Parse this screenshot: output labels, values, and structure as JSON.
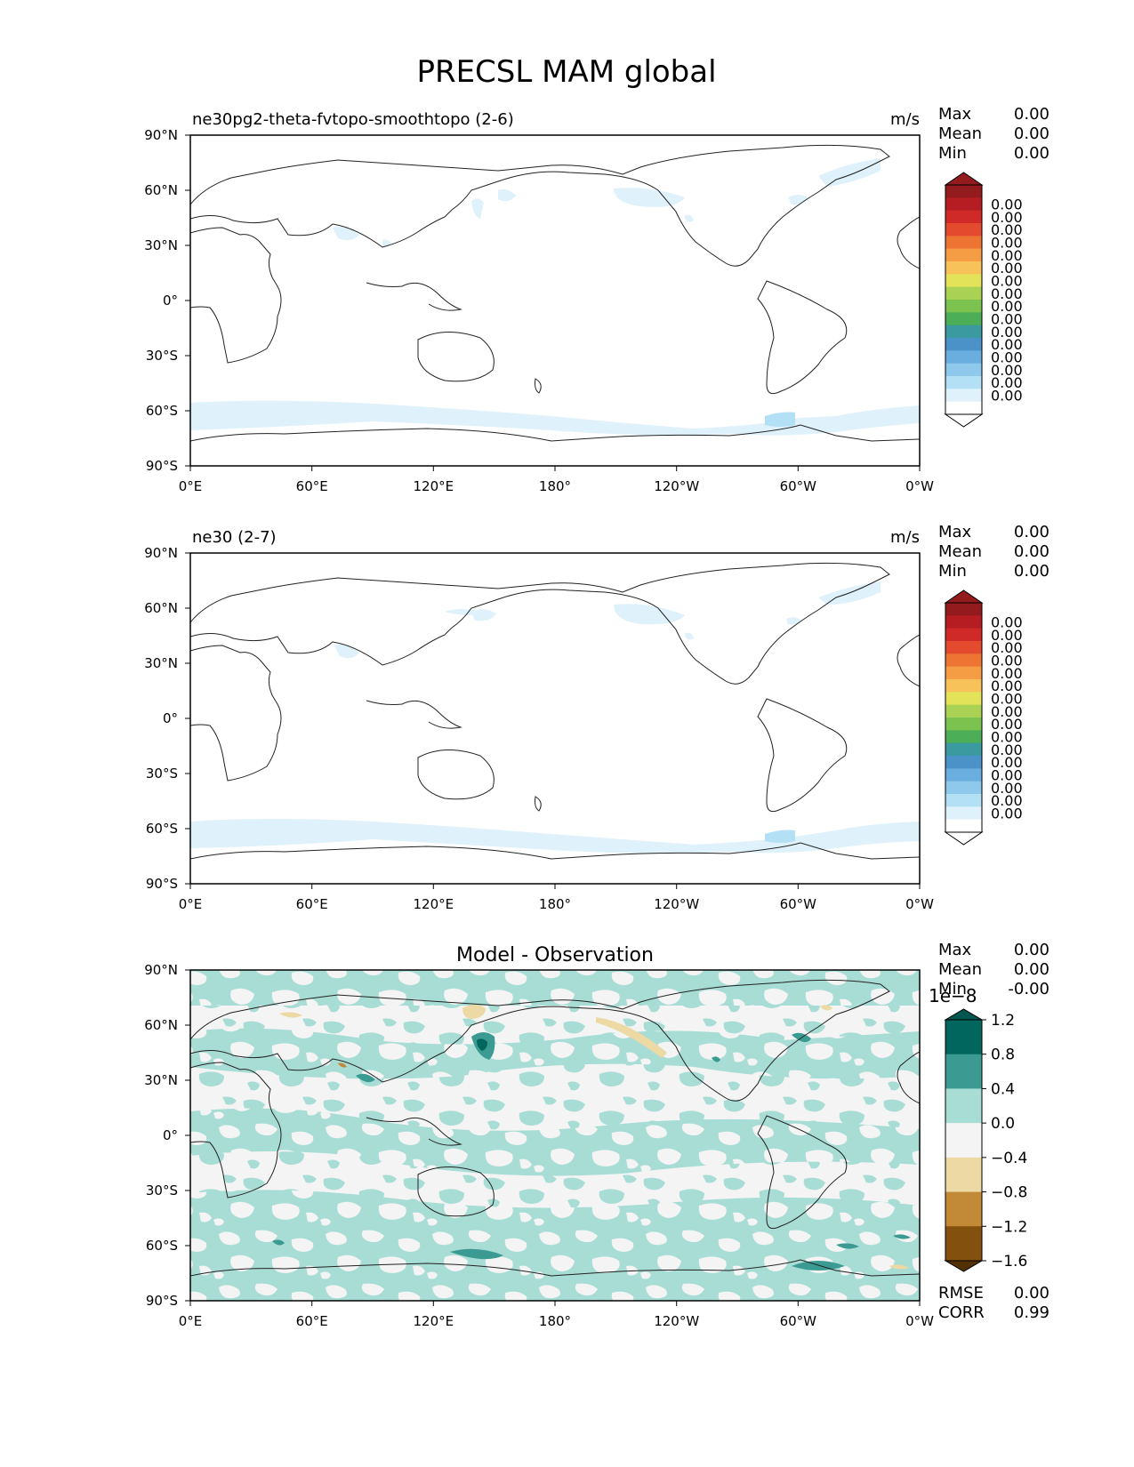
{
  "figure_title": "PRECSL MAM global",
  "chart_data": [
    {
      "type": "heatmap",
      "title": "ne30pg2-theta-fvtopo-smoothtopo (2-6)",
      "units": "m/s",
      "projection": "plate-carree",
      "central_longitude": 180,
      "x_ticks": [
        "0°E",
        "60°E",
        "120°E",
        "180°",
        "120°W",
        "60°W",
        "0°W"
      ],
      "y_ticks": [
        "90°N",
        "60°N",
        "30°N",
        "0°",
        "30°S",
        "60°S",
        "90°S"
      ],
      "stats": [
        {
          "label": "Max",
          "value": "0.00"
        },
        {
          "label": "Mean",
          "value": "0.00"
        },
        {
          "label": "Min",
          "value": "0.00"
        }
      ],
      "colorbar": {
        "extend": "both",
        "labels": [
          "0.00",
          "0.00",
          "0.00",
          "0.00",
          "0.00",
          "0.00",
          "0.00",
          "0.00",
          "0.00",
          "0.00",
          "0.00",
          "0.00",
          "0.00",
          "0.00",
          "0.00",
          "0.00"
        ],
        "colors": [
          "#ffffff",
          "#dff1fb",
          "#b4e0f5",
          "#8ec8eb",
          "#6aaee0",
          "#4a92c8",
          "#3a9aa0",
          "#4cae56",
          "#7cc24e",
          "#a9d153",
          "#e3e35a",
          "#f7c25a",
          "#f59d45",
          "#ee7434",
          "#e44a2e",
          "#cf2a27",
          "#b51d22",
          "#931b1e"
        ],
        "under_color": "#ffffff",
        "over_color": "#931b1e"
      },
      "features": [
        "Southern Ocean snowfall band (light blue)",
        "Greenland coast",
        "Alaska coast"
      ]
    },
    {
      "type": "heatmap",
      "title": "ne30 (2-7)",
      "units": "m/s",
      "projection": "plate-carree",
      "central_longitude": 180,
      "x_ticks": [
        "0°E",
        "60°E",
        "120°E",
        "180°",
        "120°W",
        "60°W",
        "0°W"
      ],
      "y_ticks": [
        "90°N",
        "60°N",
        "30°N",
        "0°",
        "30°S",
        "60°S",
        "90°S"
      ],
      "stats": [
        {
          "label": "Max",
          "value": "0.00"
        },
        {
          "label": "Mean",
          "value": "0.00"
        },
        {
          "label": "Min",
          "value": "0.00"
        }
      ],
      "colorbar": {
        "extend": "both",
        "labels": [
          "0.00",
          "0.00",
          "0.00",
          "0.00",
          "0.00",
          "0.00",
          "0.00",
          "0.00",
          "0.00",
          "0.00",
          "0.00",
          "0.00",
          "0.00",
          "0.00",
          "0.00",
          "0.00"
        ],
        "colors": [
          "#ffffff",
          "#dff1fb",
          "#b4e0f5",
          "#8ec8eb",
          "#6aaee0",
          "#4a92c8",
          "#3a9aa0",
          "#4cae56",
          "#7cc24e",
          "#a9d153",
          "#e3e35a",
          "#f7c25a",
          "#f59d45",
          "#ee7434",
          "#e44a2e",
          "#cf2a27",
          "#b51d22",
          "#931b1e"
        ],
        "under_color": "#ffffff",
        "over_color": "#931b1e"
      },
      "features": [
        "Southern Ocean snowfall band (light blue)",
        "Greenland coast",
        "Alaska coast"
      ]
    },
    {
      "type": "heatmap",
      "title": "Model - Observation",
      "units": "",
      "projection": "plate-carree",
      "central_longitude": 180,
      "x_ticks": [
        "0°E",
        "60°E",
        "120°E",
        "180°",
        "120°W",
        "60°W",
        "0°W"
      ],
      "y_ticks": [
        "90°N",
        "60°N",
        "30°N",
        "0°",
        "30°S",
        "60°S",
        "90°S"
      ],
      "stats": [
        {
          "label": "Max",
          "value": "0.00"
        },
        {
          "label": "Mean",
          "value": "0.00"
        },
        {
          "label": "Min",
          "value": "-0.00"
        }
      ],
      "extra_stats": [
        {
          "label": "RMSE",
          "value": "0.00"
        },
        {
          "label": "CORR",
          "value": "0.99"
        }
      ],
      "colorbar": {
        "extend": "both",
        "offset_label": "1e−8",
        "labels": [
          "1.2",
          "0.8",
          "0.4",
          "0.0",
          "−0.4",
          "−0.8",
          "−1.2",
          "−1.6"
        ],
        "levels": [
          1.2,
          0.8,
          0.4,
          0.0,
          -0.4,
          -0.8,
          -1.2,
          -1.6
        ],
        "colors": [
          "#01665e",
          "#3b9b93",
          "#a8ddd5",
          "#f3f4f3",
          "#ecd9a4",
          "#c28a36",
          "#83500d"
        ],
        "under_color": "#543005",
        "over_color": "#01564f"
      }
    }
  ]
}
